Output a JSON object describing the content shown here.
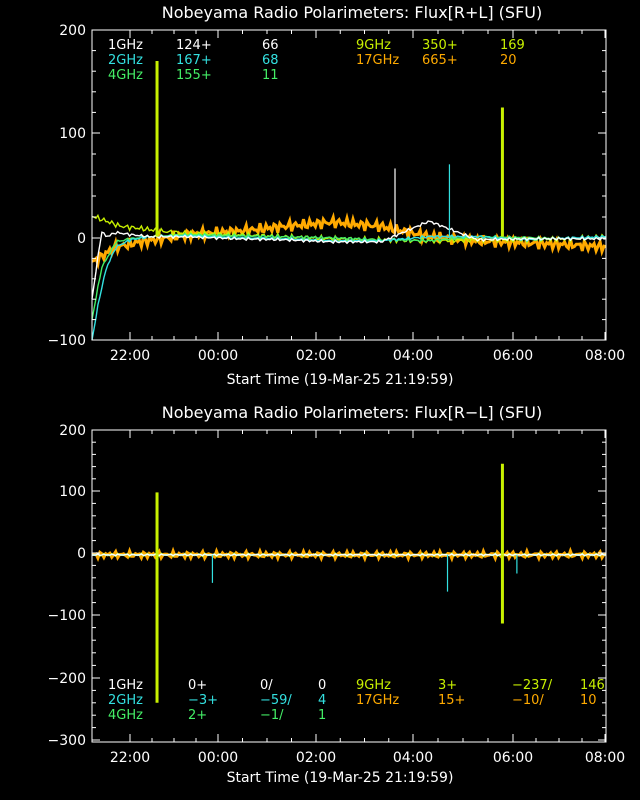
{
  "colors": {
    "1GHz": "#ffffff",
    "2GHz": "#33e0e0",
    "4GHz": "#44ee66",
    "9GHz": "#c8f000",
    "17GHz": "#ffaa00",
    "axis": "#ffffff",
    "background": "#000000"
  },
  "chart_data": [
    {
      "type": "line",
      "title": "Nobeyama Radio Polarimeters: Flux[R+L] (SFU)",
      "xlabel": "Start Time (19-Mar-25 21:19:59)",
      "ylabel": "",
      "x_ticks": [
        "22:00",
        "00:00",
        "02:00",
        "04:00",
        "06:00",
        "08:00"
      ],
      "y_ticks": [
        "200",
        "100",
        "0",
        "−100"
      ],
      "xlim_hours_after_start": [
        0,
        10.67
      ],
      "ylim": [
        -100,
        200
      ],
      "legend": [
        {
          "band": "1GHz",
          "col2": "124+",
          "col3": "66"
        },
        {
          "band": "2GHz",
          "col2": "167+",
          "col3": "68"
        },
        {
          "band": "4GHz",
          "col2": "155+",
          "col3": "11"
        },
        {
          "band": "9GHz",
          "col2": "350+",
          "col3": "169"
        },
        {
          "band": "17GHz",
          "col2": "665+",
          "col3": "20"
        }
      ],
      "series": [
        {
          "name": "1GHz",
          "x": [
            0,
            0.2,
            0.3,
            0.5,
            0.8,
            1.2,
            2,
            3,
            4,
            5,
            6,
            7,
            8,
            9,
            10,
            10.67
          ],
          "y": [
            -60,
            5,
            0,
            4,
            2,
            0,
            0,
            -2,
            -3,
            -5,
            -5,
            15,
            -3,
            -2,
            -2,
            -2
          ]
        },
        {
          "name": "2GHz",
          "x": [
            0,
            0.15,
            0.3,
            0.5,
            0.8,
            1.2,
            2,
            3,
            4,
            5,
            6,
            7,
            8,
            9,
            10,
            10.67
          ],
          "y": [
            -100,
            -60,
            -30,
            -10,
            -3,
            0,
            1,
            -1,
            -2,
            -4,
            -4,
            0,
            0,
            -3,
            -1,
            0
          ]
        },
        {
          "name": "4GHz",
          "x": [
            0,
            0.2,
            0.5,
            0.8,
            1.2,
            2,
            3,
            4,
            5,
            6,
            7,
            8,
            9,
            10,
            10.67
          ],
          "y": [
            -80,
            -30,
            -5,
            -2,
            0,
            2,
            1,
            0,
            -1,
            -3,
            -4,
            0,
            -1,
            -2,
            0
          ]
        },
        {
          "name": "9GHz",
          "x": [
            0,
            0.3,
            0.6,
            1,
            1.5,
            2,
            3,
            4,
            5,
            6,
            7,
            8,
            9,
            10,
            10.67
          ],
          "y": [
            20,
            15,
            10,
            8,
            5,
            3,
            2,
            0,
            -2,
            -3,
            -4,
            -3,
            -3,
            -2,
            0
          ]
        },
        {
          "name": "17GHz",
          "x": [
            0,
            0.5,
            1,
            2,
            3,
            4,
            5,
            6,
            7,
            8,
            9,
            10,
            10.67
          ],
          "y": [
            -25,
            -10,
            -5,
            2,
            5,
            10,
            14,
            10,
            0,
            -4,
            -6,
            -8,
            -10
          ]
        }
      ],
      "spikes": [
        {
          "series": "9GHz",
          "x": 1.35,
          "y": 170
        },
        {
          "series": "9GHz",
          "x": 8.52,
          "y": 125
        },
        {
          "series": "2GHz",
          "x": 7.42,
          "y": 70
        },
        {
          "series": "1GHz",
          "x": 6.29,
          "y": 66
        }
      ]
    },
    {
      "type": "line",
      "title": "Nobeyama Radio Polarimeters: Flux[R−L] (SFU)",
      "xlabel": "Start Time (19-Mar-25 21:19:59)",
      "ylabel": "",
      "x_ticks": [
        "22:00",
        "00:00",
        "02:00",
        "04:00",
        "06:00",
        "08:00"
      ],
      "y_ticks": [
        "200",
        "100",
        "0",
        "−100",
        "−200",
        "−300"
      ],
      "xlim_hours_after_start": [
        0,
        10.67
      ],
      "ylim": [
        -300,
        200
      ],
      "legend": [
        {
          "band": "1GHz",
          "col2": "0+",
          "col3": "0/",
          "col4": "0"
        },
        {
          "band": "2GHz",
          "col2": "−3+",
          "col3": "−59/",
          "col4": "4"
        },
        {
          "band": "4GHz",
          "col2": "2+",
          "col3": "−1/",
          "col4": "1"
        },
        {
          "band": "9GHz",
          "col2": "3+",
          "col3": "−237/",
          "col4": "146"
        },
        {
          "band": "17GHz",
          "col2": "15+",
          "col3": "−10/",
          "col4": "10"
        }
      ],
      "series": [
        {
          "name": "1GHz",
          "x": [
            0,
            10.67
          ],
          "y": [
            0,
            0
          ]
        },
        {
          "name": "2GHz",
          "x": [
            0,
            10.67
          ],
          "y": [
            0,
            0
          ]
        },
        {
          "name": "4GHz",
          "x": [
            0,
            10.67
          ],
          "y": [
            0,
            0
          ]
        },
        {
          "name": "9GHz",
          "x": [
            0,
            10.67
          ],
          "y": [
            0,
            0
          ]
        },
        {
          "name": "17GHz",
          "x": [
            0,
            10.67
          ],
          "y": [
            0,
            0
          ]
        }
      ],
      "spikes": [
        {
          "series": "9GHz",
          "x": 1.35,
          "y": 100
        },
        {
          "series": "9GHz",
          "x": 1.35,
          "y": -237
        },
        {
          "series": "9GHz",
          "x": 8.52,
          "y": 146
        },
        {
          "series": "9GHz",
          "x": 8.52,
          "y": -110
        },
        {
          "series": "2GHz",
          "x": 2.5,
          "y": -45
        },
        {
          "series": "2GHz",
          "x": 7.38,
          "y": -59
        },
        {
          "series": "2GHz",
          "x": 8.82,
          "y": -30
        }
      ]
    }
  ]
}
